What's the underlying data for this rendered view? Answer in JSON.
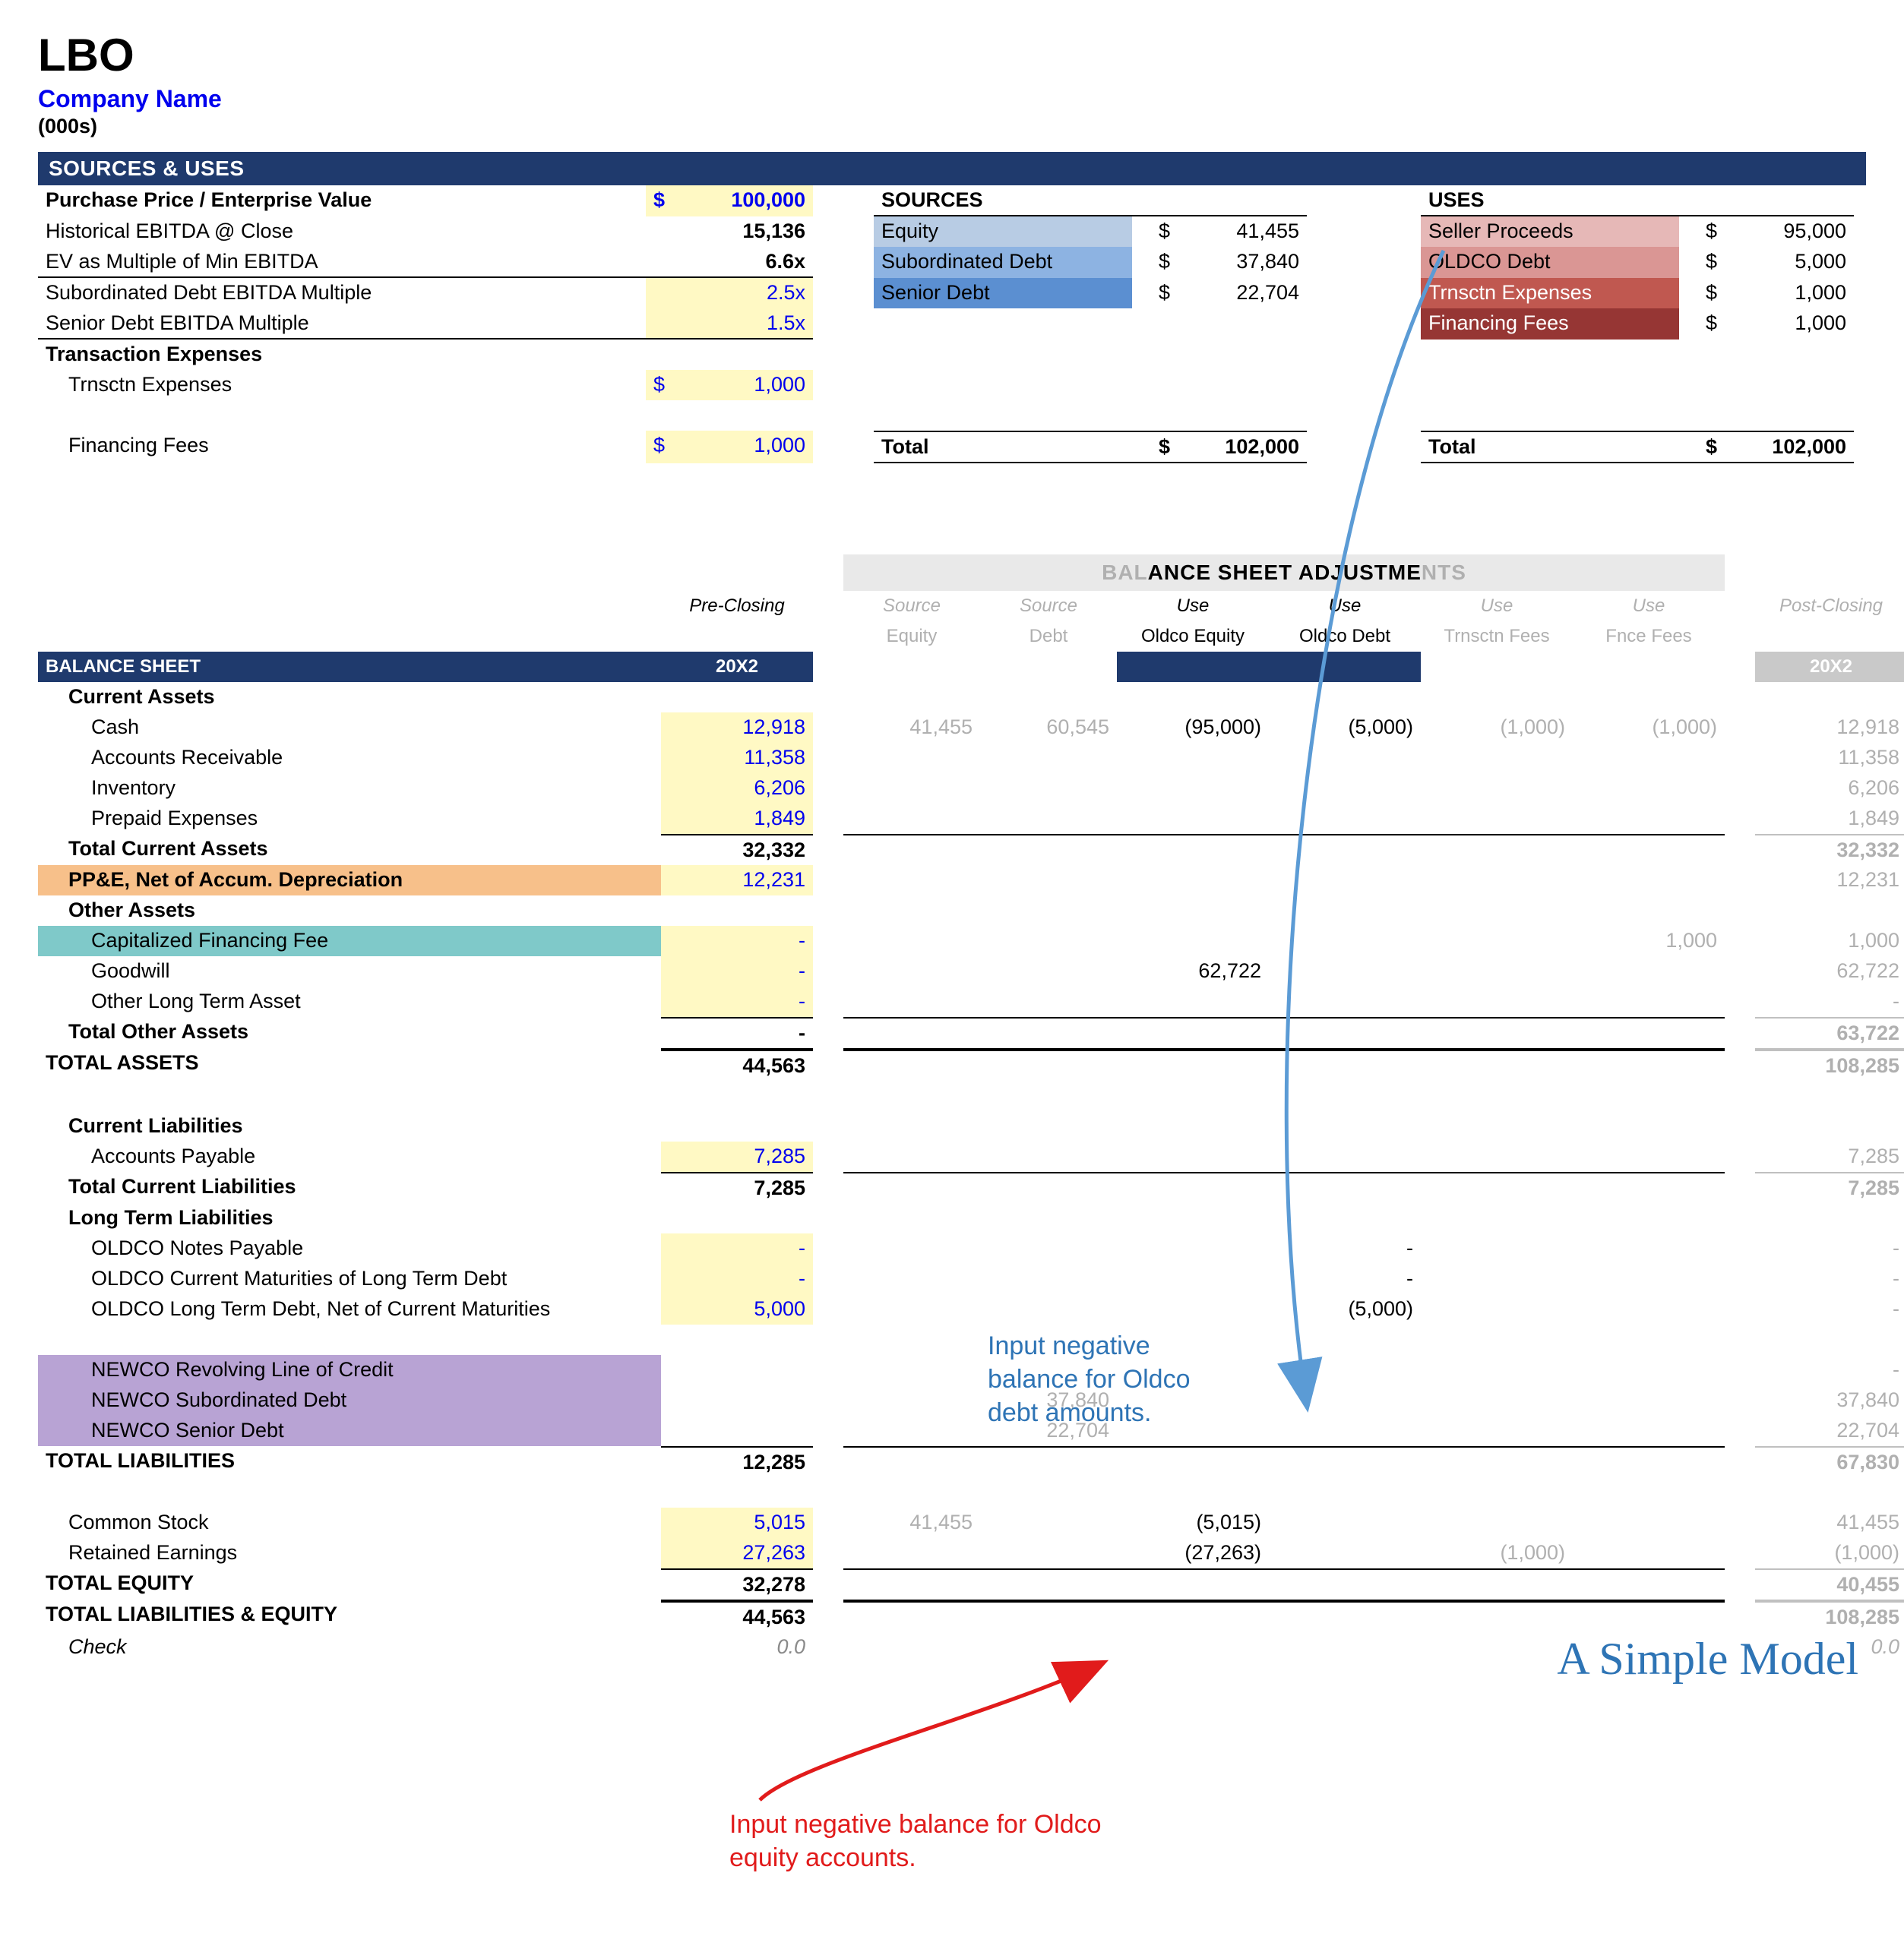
{
  "title": "LBO",
  "subtitle": "Company Name",
  "units": "(000s)",
  "sections": {
    "sources_uses": "SOURCES & USES",
    "balance_sheet": "BALANCE SHEET",
    "bs_adjustments": "BALANCE SHEET ADJUSTMENTS"
  },
  "purchase": {
    "rows": [
      {
        "label": "Purchase Price / Enterprise Value",
        "dol": "$",
        "val": "100,000",
        "bold": true,
        "yellow": true,
        "blue": true
      },
      {
        "label": "Historical EBITDA @ Close",
        "val": "15,136",
        "bold": true
      },
      {
        "label": "EV as Multiple of Min EBITDA",
        "val": "6.6x",
        "bold": true,
        "ubot": true
      },
      {
        "label": "Subordinated Debt EBITDA Multiple",
        "val": "2.5x",
        "yellow": true,
        "blue": true
      },
      {
        "label": "Senior Debt EBITDA Multiple",
        "val": "1.5x",
        "yellow": true,
        "blue": true,
        "ubot": true
      }
    ],
    "tx_head": "Transaction Expenses",
    "tx": [
      {
        "label": "Trnsctn Expenses",
        "dol": "$",
        "val": "1,000"
      },
      {
        "label": "Financing Fees",
        "dol": "$",
        "val": "1,000"
      }
    ]
  },
  "sources": {
    "head": "SOURCES",
    "items": [
      {
        "label": "Equity",
        "bg": "#b8cce4",
        "dol": "$",
        "val": "41,455"
      },
      {
        "label": "Subordinated Debt",
        "bg": "#8db3e2",
        "dol": "$",
        "val": "37,840"
      },
      {
        "label": "Senior Debt",
        "bg": "#5b8fd1",
        "dol": "$",
        "val": "22,704"
      }
    ],
    "total_label": "Total",
    "total_dol": "$",
    "total_val": "102,000"
  },
  "uses": {
    "head": "USES",
    "items": [
      {
        "label": "Seller Proceeds",
        "bg": "#e6b8b7",
        "dol": "$",
        "val": "95,000"
      },
      {
        "label": "OLDCO Debt",
        "bg": "#da9694",
        "dol": "$",
        "val": "5,000"
      },
      {
        "label": "Trnsctn Expenses",
        "bg": "#c05850",
        "fg": "#fff",
        "dol": "$",
        "val": "1,000"
      },
      {
        "label": "Financing Fees",
        "bg": "#963634",
        "fg": "#fff",
        "dol": "$",
        "val": "1,000"
      }
    ],
    "total_label": "Total",
    "total_dol": "$",
    "total_val": "102,000"
  },
  "bs_headers": {
    "pre": "Pre-Closing",
    "cols": [
      {
        "t": "Source",
        "s": "Equity"
      },
      {
        "t": "Source",
        "s": "Debt"
      },
      {
        "t": "Use",
        "s": "Oldco Equity",
        "active": true,
        "bg": "#e6b8b7"
      },
      {
        "t": "Use",
        "s": "Oldco Debt",
        "active": true,
        "bg": "#da9694"
      },
      {
        "t": "Use",
        "s": "Trnsctn Fees",
        "bg": "#c05850"
      },
      {
        "t": "Use",
        "s": "Fnce Fees",
        "bg": "#963634"
      }
    ],
    "post": "Post-Closing",
    "year": "20X2"
  },
  "bs": {
    "current_assets_head": "Current Assets",
    "current_assets": [
      {
        "label": "Cash",
        "pre": "12,918",
        "a": [
          "41,455",
          "60,545",
          "(95,000)",
          "(5,000)",
          "(1,000)",
          "(1,000)"
        ],
        "post": "12,918"
      },
      {
        "label": "Accounts Receivable",
        "pre": "11,358",
        "a": [
          "",
          "",
          "",
          "",
          "",
          ""
        ],
        "post": "11,358"
      },
      {
        "label": "Inventory",
        "pre": "6,206",
        "a": [
          "",
          "",
          "",
          "",
          "",
          ""
        ],
        "post": "6,206"
      },
      {
        "label": "Prepaid Expenses",
        "pre": "1,849",
        "a": [
          "",
          "",
          "",
          "",
          "",
          ""
        ],
        "post": "1,849"
      }
    ],
    "tca": {
      "label": "Total Current Assets",
      "pre": "32,332",
      "post": "32,332"
    },
    "ppe": {
      "label": "PP&E, Net of Accum. Depreciation",
      "pre": "12,231",
      "post": "12,231"
    },
    "other_head": "Other Assets",
    "other": [
      {
        "label": "Capitalized Financing Fee",
        "pre": "-",
        "a": [
          "",
          "",
          "",
          "",
          "",
          "1,000"
        ],
        "post": "1,000",
        "teal": true
      },
      {
        "label": "Goodwill",
        "pre": "-",
        "a": [
          "",
          "",
          "62,722",
          "",
          "",
          ""
        ],
        "post": "62,722"
      },
      {
        "label": "Other Long Term Asset",
        "pre": "-",
        "a": [
          "",
          "",
          "",
          "",
          "",
          ""
        ],
        "post": "-"
      }
    ],
    "toa": {
      "label": "Total Other Assets",
      "pre": "-",
      "post": "63,722"
    },
    "ta": {
      "label": "TOTAL ASSETS",
      "pre": "44,563",
      "post": "108,285"
    },
    "cl_head": "Current Liabilities",
    "cl": [
      {
        "label": "Accounts Payable",
        "pre": "7,285",
        "a": [
          "",
          "",
          "",
          "",
          "",
          ""
        ],
        "post": "7,285"
      }
    ],
    "tcl": {
      "label": "Total Current Liabilities",
      "pre": "7,285",
      "post": "7,285"
    },
    "ltl_head": "Long Term Liabilities",
    "ltl_old": [
      {
        "label": "OLDCO Notes Payable",
        "pre": "-",
        "a": [
          "",
          "",
          "",
          "-",
          "",
          ""
        ],
        "post": "-"
      },
      {
        "label": "OLDCO Current Maturities of Long Term Debt",
        "pre": "-",
        "a": [
          "",
          "",
          "",
          "-",
          "",
          ""
        ],
        "post": "-"
      },
      {
        "label": "OLDCO Long Term Debt, Net of Current Maturities",
        "pre": "5,000",
        "a": [
          "",
          "",
          "",
          "(5,000)",
          "",
          ""
        ],
        "post": "-"
      }
    ],
    "ltl_new": [
      {
        "label": "NEWCO Revolving Line of Credit",
        "pre": "",
        "a": [
          "",
          "",
          "",
          "",
          "",
          ""
        ],
        "post": "-"
      },
      {
        "label": "NEWCO Subordinated Debt",
        "pre": "",
        "a": [
          "",
          "37,840",
          "",
          "",
          "",
          ""
        ],
        "post": "37,840"
      },
      {
        "label": "NEWCO Senior Debt",
        "pre": "",
        "a": [
          "",
          "22,704",
          "",
          "",
          "",
          ""
        ],
        "post": "22,704"
      }
    ],
    "tl": {
      "label": "TOTAL LIABILITIES",
      "pre": "12,285",
      "post": "67,830"
    },
    "equity": [
      {
        "label": "Common Stock",
        "pre": "5,015",
        "a": [
          "41,455",
          "",
          "(5,015)",
          "",
          "",
          ""
        ],
        "post": "41,455"
      },
      {
        "label": "Retained Earnings",
        "pre": "27,263",
        "a": [
          "",
          "",
          "(27,263)",
          "",
          "(1,000)",
          ""
        ],
        "post": "(1,000)"
      }
    ],
    "te": {
      "label": "TOTAL EQUITY",
      "pre": "32,278",
      "post": "40,455"
    },
    "tle": {
      "label": "TOTAL LIABILITIES & EQUITY",
      "pre": "44,563",
      "post": "108,285"
    },
    "check": {
      "label": "Check",
      "pre": "0.0",
      "post": "0.0"
    }
  },
  "annotations": {
    "blue": "Input negative balance for Oldco debt amounts.",
    "red": "Input negative balance for Oldco equity accounts."
  },
  "footer": "A Simple Model"
}
